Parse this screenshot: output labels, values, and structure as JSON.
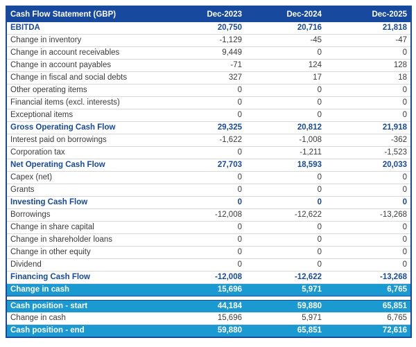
{
  "colors": {
    "navy": "#17499E",
    "cyan": "#1B9AD2"
  },
  "table": {
    "header": {
      "label": "Cash Flow Statement (GBP)",
      "columns": [
        "Dec-2023",
        "Dec-2024",
        "Dec-2025"
      ]
    },
    "rows": [
      {
        "label": "EBITDA",
        "values": [
          "20,750",
          "20,716",
          "21,818"
        ],
        "style": "bold"
      },
      {
        "label": "Change in inventory",
        "values": [
          "-1,129",
          "-45",
          "-47"
        ],
        "style": "normal"
      },
      {
        "label": "Change in account receivables",
        "values": [
          "9,449",
          "0",
          "0"
        ],
        "style": "normal"
      },
      {
        "label": "Change in account payables",
        "values": [
          "-71",
          "124",
          "128"
        ],
        "style": "normal"
      },
      {
        "label": "Change in fiscal and social debts",
        "values": [
          "327",
          "17",
          "18"
        ],
        "style": "normal"
      },
      {
        "label": "Other operating items",
        "values": [
          "0",
          "0",
          "0"
        ],
        "style": "normal"
      },
      {
        "label": "Financial items (excl. interests)",
        "values": [
          "0",
          "0",
          "0"
        ],
        "style": "normal"
      },
      {
        "label": "Exceptional items",
        "values": [
          "0",
          "0",
          "0"
        ],
        "style": "normal"
      },
      {
        "label": "Gross Operating Cash Flow",
        "values": [
          "29,325",
          "20,812",
          "21,918"
        ],
        "style": "bold"
      },
      {
        "label": "Interest paid on borrowings",
        "values": [
          "-1,622",
          "-1,008",
          "-362"
        ],
        "style": "normal"
      },
      {
        "label": "Corporation tax",
        "values": [
          "0",
          "-1,211",
          "-1,523"
        ],
        "style": "normal"
      },
      {
        "label": "Net Operating Cash Flow",
        "values": [
          "27,703",
          "18,593",
          "20,033"
        ],
        "style": "bold"
      },
      {
        "label": "Capex (net)",
        "values": [
          "0",
          "0",
          "0"
        ],
        "style": "normal"
      },
      {
        "label": "Grants",
        "values": [
          "0",
          "0",
          "0"
        ],
        "style": "normal"
      },
      {
        "label": "Investing Cash Flow",
        "values": [
          "0",
          "0",
          "0"
        ],
        "style": "bold"
      },
      {
        "label": "Borrowings",
        "values": [
          "-12,008",
          "-12,622",
          "-13,268"
        ],
        "style": "normal"
      },
      {
        "label": "Change in share capital",
        "values": [
          "0",
          "0",
          "0"
        ],
        "style": "normal"
      },
      {
        "label": "Change in shareholder loans",
        "values": [
          "0",
          "0",
          "0"
        ],
        "style": "normal"
      },
      {
        "label": "Change in other equity",
        "values": [
          "0",
          "0",
          "0"
        ],
        "style": "normal"
      },
      {
        "label": "Dividend",
        "values": [
          "0",
          "0",
          "0"
        ],
        "style": "normal"
      },
      {
        "label": "Financing Cash Flow",
        "values": [
          "-12,008",
          "-12,622",
          "-13,268"
        ],
        "style": "bold"
      },
      {
        "label": "Change in cash",
        "values": [
          "15,696",
          "5,971",
          "6,765"
        ],
        "style": "highlight"
      },
      {
        "style": "spacer"
      },
      {
        "label": "Cash position - start",
        "values": [
          "44,184",
          "59,880",
          "65,851"
        ],
        "style": "highlight"
      },
      {
        "label": "Change in cash",
        "values": [
          "15,696",
          "5,971",
          "6,765"
        ],
        "style": "normal"
      },
      {
        "label": "Cash position - end",
        "values": [
          "59,880",
          "65,851",
          "72,616"
        ],
        "style": "highlight"
      }
    ]
  }
}
